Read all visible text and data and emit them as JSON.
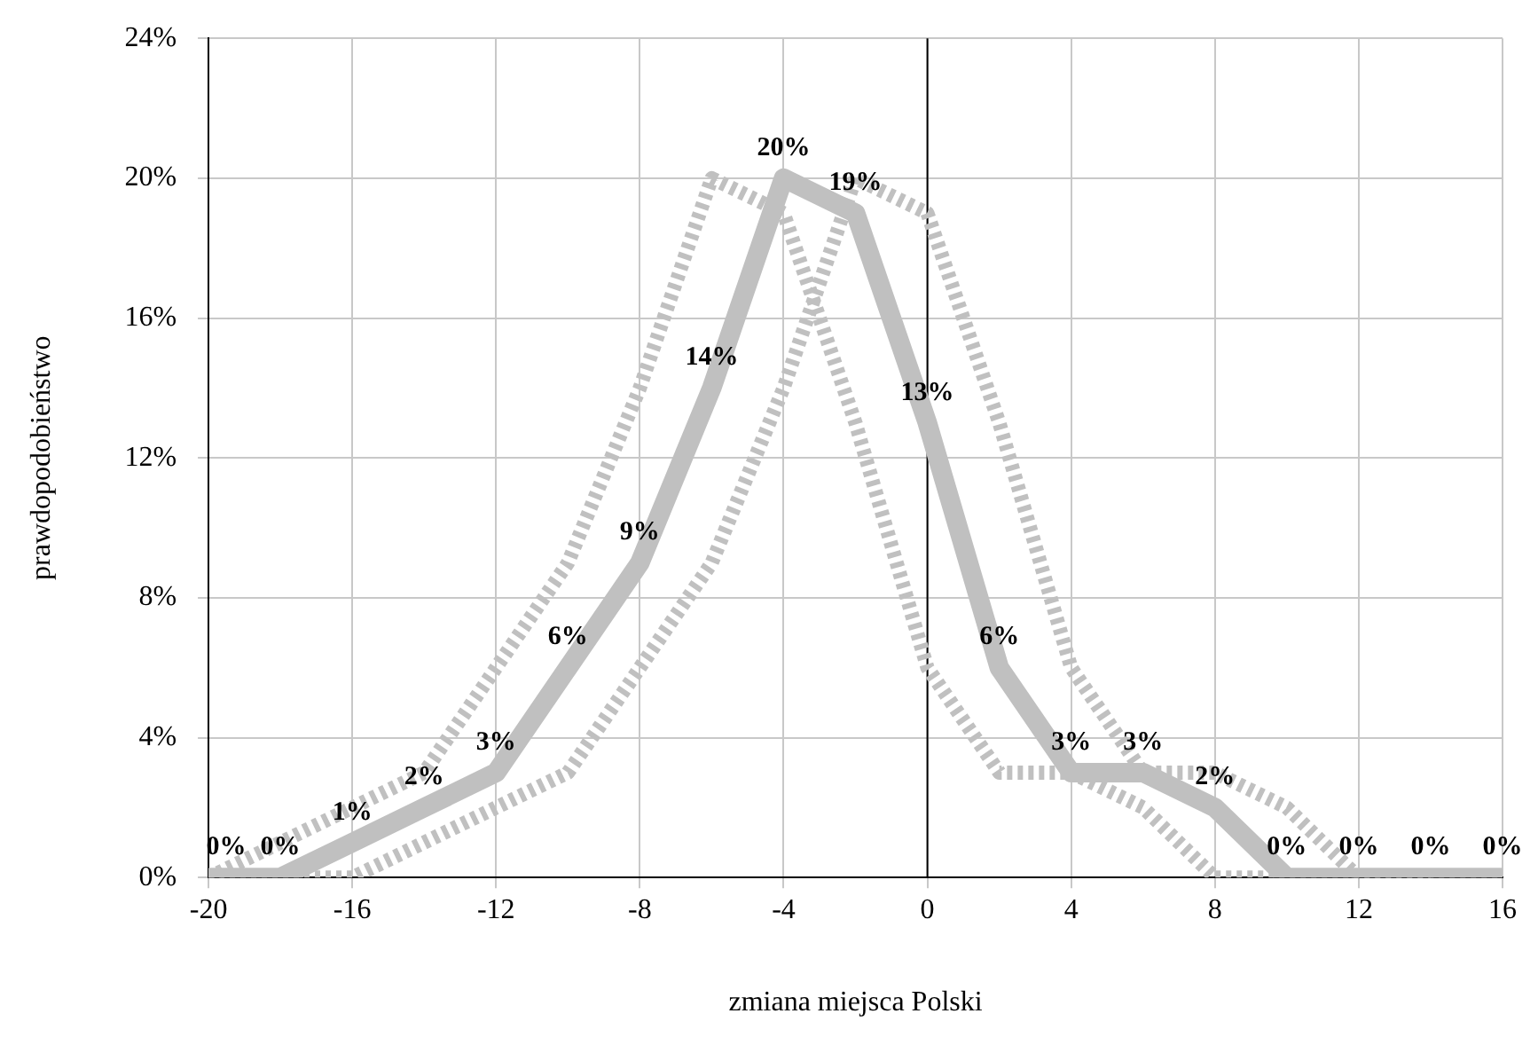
{
  "chart_data": {
    "type": "line",
    "xlabel": "zmiana miejsca Polski",
    "ylabel": "prawdopodobieństwo",
    "xlim": [
      -20,
      16
    ],
    "xticks": [
      -20,
      -16,
      -12,
      -8,
      -4,
      0,
      4,
      8,
      12,
      16
    ],
    "ylim": [
      0,
      24
    ],
    "yticks": [
      {
        "value": 0,
        "label": "0%"
      },
      {
        "value": 4,
        "label": "4%"
      },
      {
        "value": 8,
        "label": "8%"
      },
      {
        "value": 12,
        "label": "12%"
      },
      {
        "value": 16,
        "label": "16%"
      },
      {
        "value": 20,
        "label": "20%"
      },
      {
        "value": 24,
        "label": "24%"
      }
    ],
    "grid": true,
    "legend": false,
    "marker": "none",
    "ref_lines": [
      {
        "axis": "x",
        "value": 0,
        "color": "#000000"
      }
    ],
    "series": [
      {
        "color": "#c0c0c0",
        "line_style": "dotted",
        "x": [
          -20,
          -18,
          -16,
          -14,
          -12,
          -10,
          -8,
          -6,
          -4,
          -2,
          0,
          2,
          4,
          6,
          8,
          10,
          12,
          14
        ],
        "values": [
          0,
          1,
          2,
          3,
          6,
          9,
          14,
          20,
          19,
          13,
          6,
          3,
          3,
          2,
          0,
          0,
          0,
          0
        ]
      },
      {
        "color": "#c0c0c0",
        "line_style": "dotted",
        "x": [
          -20,
          -18,
          -16,
          -14,
          -12,
          -10,
          -8,
          -6,
          -4,
          -2,
          0,
          2,
          4,
          6,
          8,
          10,
          12,
          14,
          16
        ],
        "values": [
          0,
          0,
          0,
          1,
          2,
          3,
          6,
          9,
          14,
          20,
          19,
          13,
          6,
          3,
          3,
          2,
          0,
          0,
          0
        ]
      },
      {
        "color": "#c0c0c0",
        "line_style": "solid",
        "x": [
          -20,
          -18,
          -16,
          -14,
          -12,
          -10,
          -8,
          -6,
          -4,
          -2,
          0,
          2,
          4,
          6,
          8,
          10,
          12,
          14,
          16
        ],
        "values": [
          0,
          0,
          1,
          2,
          3,
          6,
          9,
          14,
          20,
          19,
          13,
          6,
          3,
          3,
          2,
          0,
          0,
          0,
          0
        ],
        "value_labels": [
          "0%",
          "0%",
          "1%",
          "2%",
          "3%",
          "6%",
          "9%",
          "14%",
          "20%",
          "19%",
          "13%",
          "6%",
          "3%",
          "3%",
          "2%",
          "0%",
          "0%",
          "0%",
          "0%"
        ]
      }
    ]
  }
}
